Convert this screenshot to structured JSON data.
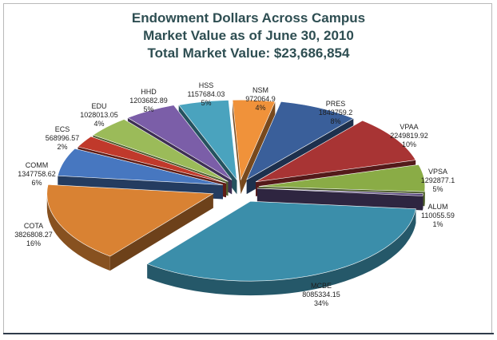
{
  "chart_data": {
    "type": "pie",
    "title_lines": [
      "Endowment Dollars Across Campus",
      "Market Value as of June 30, 2010",
      "Total Market Value: $23,686,854"
    ],
    "slices": [
      {
        "name": "NSM",
        "value": "972064.9",
        "percent": "4%",
        "color": "#f0923a"
      },
      {
        "name": "PRES",
        "value": "1843759.2",
        "percent": "8%",
        "color": "#3a5f9a"
      },
      {
        "name": "VPAA",
        "value": "2249819.92",
        "percent": "10%",
        "color": "#a83434"
      },
      {
        "name": "VPSA",
        "value": "1292877.1",
        "percent": "5%",
        "color": "#8aac46"
      },
      {
        "name": "ALUM",
        "value": "110055.59",
        "percent": "1%",
        "color": "#5c4a80"
      },
      {
        "name": "MCBE",
        "value": "8085334.15",
        "percent": "34%",
        "color": "#3b8eaa"
      },
      {
        "name": "COTA",
        "value": "3826808.27",
        "percent": "16%",
        "color": "#d98233"
      },
      {
        "name": "COMM",
        "value": "1347758.62",
        "percent": "6%",
        "color": "#4777c0"
      },
      {
        "name": "ECS",
        "value": "568996.57",
        "percent": "2%",
        "color": "#c0392b"
      },
      {
        "name": "EDU",
        "value": "1028013.05",
        "percent": "4%",
        "color": "#9bbb59"
      },
      {
        "name": "HHD",
        "value": "1203682.89",
        "percent": "5%",
        "color": "#7b5ea8"
      },
      {
        "name": "HSS",
        "value": "1157684.03",
        "percent": "5%",
        "color": "#4aa3be"
      }
    ]
  }
}
